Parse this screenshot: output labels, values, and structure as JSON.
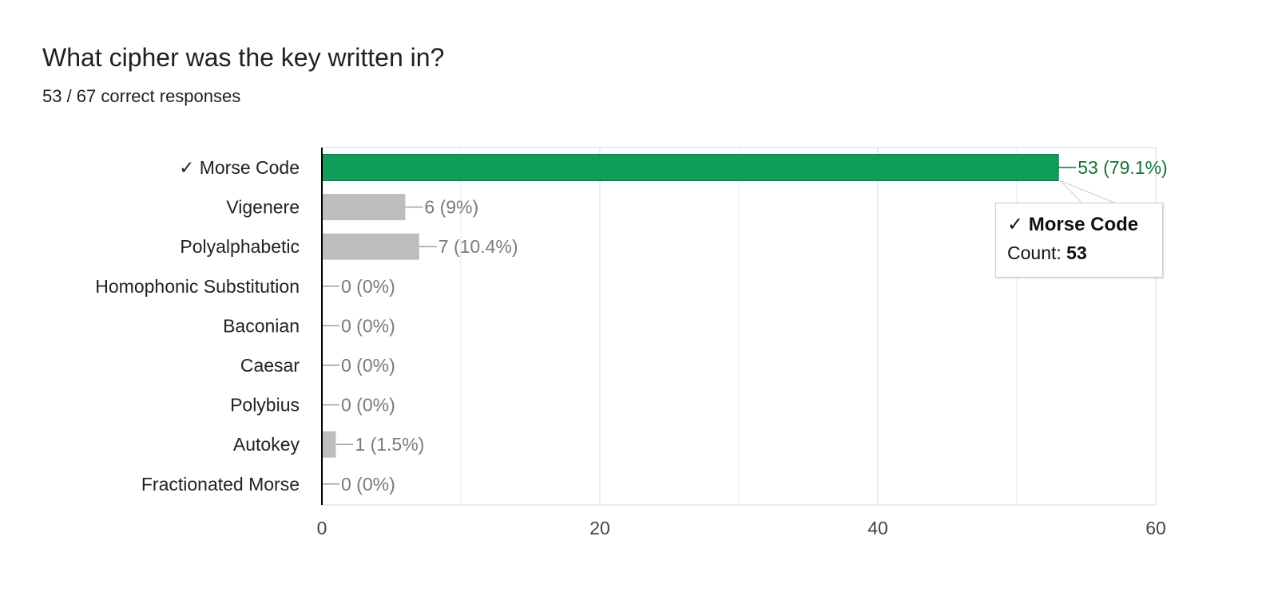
{
  "header": {
    "title": "What cipher was the key written in?",
    "subtitle": "53 / 67 correct responses"
  },
  "tooltip": {
    "title": "✓ Morse Code",
    "count_label": "Count:",
    "count_value": "53"
  },
  "colors": {
    "correct_bar": "#0f9d58",
    "correct_label": "#137333",
    "other_bar": "#bdbdbe",
    "other_label": "#7a7a7a",
    "grid": "#e6e6e6",
    "axis": "#000000"
  },
  "chart_data": {
    "type": "bar",
    "orientation": "horizontal",
    "categories": [
      "✓ Morse Code",
      "Vigenere",
      "Polyalphabetic",
      "Homophonic Substitution",
      "Baconian",
      "Caesar",
      "Polybius",
      "Autokey",
      "Fractionated Morse"
    ],
    "values": [
      53,
      6,
      7,
      0,
      0,
      0,
      0,
      1,
      0
    ],
    "data_labels": [
      "53 (79.1%)",
      "6 (9%)",
      "7 (10.4%)",
      "0 (0%)",
      "0 (0%)",
      "0 (0%)",
      "0 (0%)",
      "1 (1.5%)",
      "0 (0%)"
    ],
    "correct_index": 0,
    "xlim": [
      0,
      60
    ],
    "xticks": [
      0,
      20,
      40,
      60
    ],
    "minor_gridlines": [
      10,
      30,
      50
    ],
    "grid": true,
    "legend": "none"
  }
}
